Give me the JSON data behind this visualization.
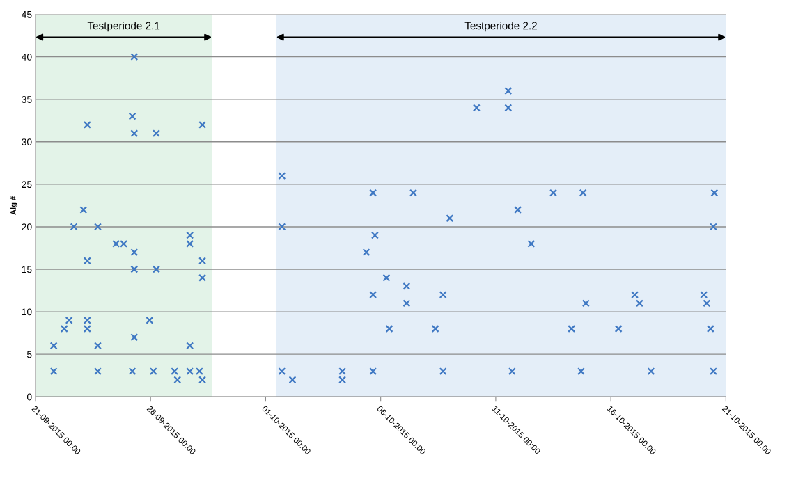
{
  "chart_data": {
    "type": "scatter",
    "ylabel": "Alg #",
    "marker": "cross",
    "grid": "y",
    "legend": false,
    "xlim": [
      "2015-09-21",
      "2015-10-21"
    ],
    "xticks": [
      {
        "value": "2015-09-21",
        "label": "21-09-2015 00:00"
      },
      {
        "value": "2015-09-26",
        "label": "26-09-2015 00:00"
      },
      {
        "value": "2015-10-01",
        "label": "01-10-2015 00:00"
      },
      {
        "value": "2015-10-06",
        "label": "06-10-2015 00:00"
      },
      {
        "value": "2015-10-11",
        "label": "11-10-2015 00:00"
      },
      {
        "value": "2015-10-16",
        "label": "16-10-2015 00:00"
      },
      {
        "value": "2015-10-21",
        "label": "21-10-2015 00:00"
      }
    ],
    "ylim": [
      0,
      45
    ],
    "yticks": [
      0,
      5,
      10,
      15,
      20,
      25,
      30,
      35,
      40,
      45
    ],
    "bands": [
      {
        "axis": "x",
        "from": "2015-09-21",
        "to": "2015-09-28T16:00",
        "label": "Testperiode 2.1",
        "color": "#e3f3e8"
      },
      {
        "axis": "x",
        "from": "2015-10-01T11:00",
        "to": "2015-10-21",
        "label": "Testperiode 2.2",
        "color": "#e4eef8"
      }
    ],
    "series": [
      {
        "color": "#3f78c3",
        "x": [
          "2015-09-21T19:00",
          "2015-09-21T19:00",
          "2015-09-22T06:00",
          "2015-09-22T11:00",
          "2015-09-22T16:00",
          "2015-09-23T02:00",
          "2015-09-23T06:00",
          "2015-09-23T06:00",
          "2015-09-23T06:00",
          "2015-09-23T06:00",
          "2015-09-23T17:00",
          "2015-09-23T17:00",
          "2015-09-23T17:00",
          "2015-09-24T12:00",
          "2015-09-24T20:00",
          "2015-09-25T05:00",
          "2015-09-25T07:00",
          "2015-09-25T07:00",
          "2015-09-25T07:00",
          "2015-09-25T07:00",
          "2015-09-25T07:00",
          "2015-09-25T05:00",
          "2015-09-25T23:00",
          "2015-09-26T06:00",
          "2015-09-26T06:00",
          "2015-09-26T03:00",
          "2015-09-27T01:00",
          "2015-09-27T04:00",
          "2015-09-27T17:00",
          "2015-09-27T17:00",
          "2015-09-27T17:00",
          "2015-09-27T17:00",
          "2015-09-28T03:00",
          "2015-09-28T06:00",
          "2015-09-28T06:00",
          "2015-09-28T06:00",
          "2015-09-28T06:00",
          "2015-10-01T17:00",
          "2015-10-01T17:00",
          "2015-10-01T17:00",
          "2015-10-02T04:00",
          "2015-10-04T08:00",
          "2015-10-04T08:00",
          "2015-10-05T09:00",
          "2015-10-05T16:00",
          "2015-10-05T18:00",
          "2015-10-05T16:00",
          "2015-10-05T16:00",
          "2015-10-06T09:00",
          "2015-10-06T06:00",
          "2015-10-07T03:00",
          "2015-10-07T03:00",
          "2015-10-07T10:00",
          "2015-10-08T09:00",
          "2015-10-08T17:00",
          "2015-10-08T17:00",
          "2015-10-09T00:00",
          "2015-10-10T04:00",
          "2015-10-11T13:00",
          "2015-10-11T13:00",
          "2015-10-11T17:00",
          "2015-10-11T23:00",
          "2015-10-12T13:00",
          "2015-10-13T12:00",
          "2015-10-14T07:00",
          "2015-10-14T19:00",
          "2015-10-14T17:00",
          "2015-10-14T22:00",
          "2015-10-16T08:00",
          "2015-10-17T01:00",
          "2015-10-17T06:00",
          "2015-10-17T18:00",
          "2015-10-20T01:00",
          "2015-10-20T04:00",
          "2015-10-20T08:00",
          "2015-10-20T11:00",
          "2015-10-20T12:00",
          "2015-10-20T11:00"
        ],
        "values": [
          6,
          3,
          8,
          9,
          20,
          22,
          32,
          16,
          9,
          8,
          20,
          6,
          3,
          18,
          18,
          33,
          40,
          31,
          17,
          15,
          7,
          3,
          9,
          31,
          15,
          3,
          3,
          2,
          6,
          19,
          18,
          3,
          3,
          32,
          16,
          14,
          2,
          26,
          20,
          3,
          2,
          3,
          2,
          17,
          24,
          19,
          12,
          3,
          8,
          14,
          13,
          11,
          24,
          8,
          12,
          3,
          21,
          34,
          36,
          34,
          3,
          22,
          18,
          24,
          8,
          24,
          3,
          11,
          8,
          12,
          11,
          3,
          12,
          11,
          8,
          20,
          24,
          3
        ]
      }
    ]
  }
}
